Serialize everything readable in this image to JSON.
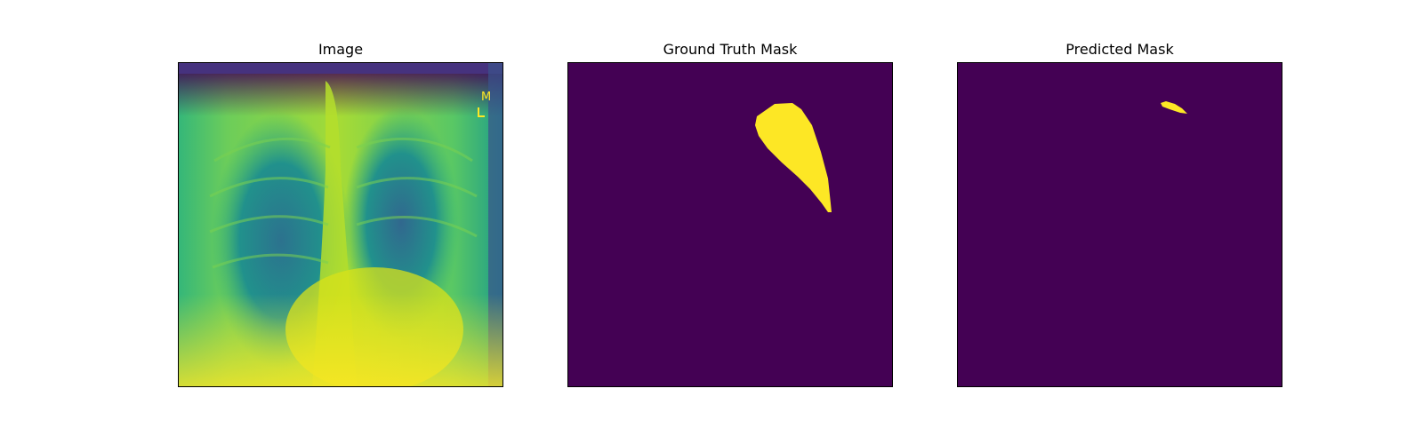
{
  "figure": {
    "panels": [
      {
        "title": "Image",
        "content": "chest x-ray (viridis colormap)"
      },
      {
        "title": "Ground Truth Mask",
        "content": "binary segmentation mask"
      },
      {
        "title": "Predicted Mask",
        "content": "binary segmentation mask"
      }
    ],
    "colors": {
      "background": "#440154",
      "foreground": "#fde725",
      "mid_teal": "#2a788e",
      "mid_green": "#35b779"
    },
    "xray_marker_text": "M"
  }
}
